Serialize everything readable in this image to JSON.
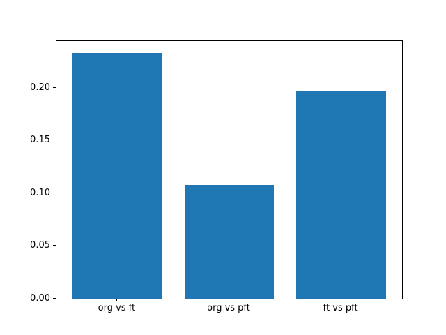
{
  "chart_data": {
    "type": "bar",
    "title": "",
    "xlabel": "",
    "ylabel": "",
    "categories": [
      "org vs ft",
      "org vs pft",
      "ft vs pft"
    ],
    "values": [
      0.233,
      0.108,
      0.197
    ],
    "bar_color": "#1f77b4",
    "background_color": "#ffffff",
    "spine_color": "#000000",
    "ylim": [
      0,
      0.2443
    ],
    "xlim": [
      -0.544,
      2.544
    ],
    "bar_width": 0.8,
    "yticks": [
      "0.00",
      "0.05",
      "0.10",
      "0.15",
      "0.20"
    ],
    "grid": "off",
    "legend": "none"
  }
}
